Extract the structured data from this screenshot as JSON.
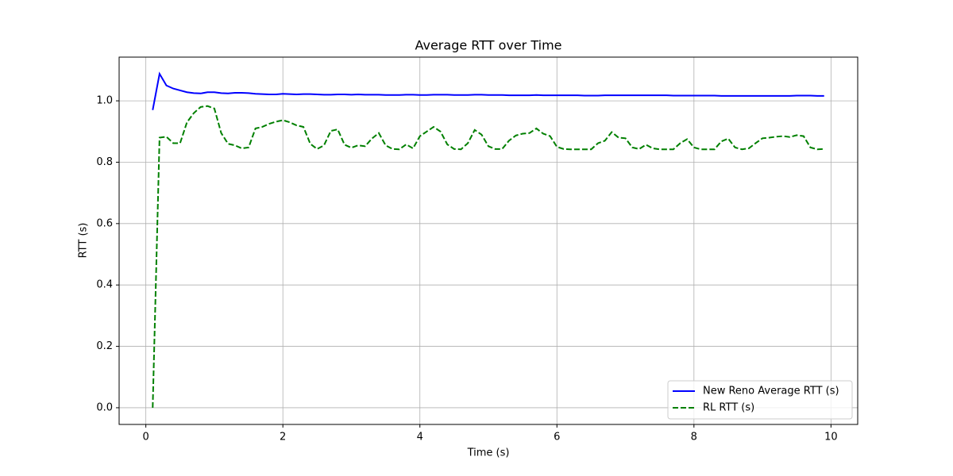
{
  "chart_data": {
    "type": "line",
    "title": "Average RTT over Time",
    "x_label": "Time (s)",
    "y_label": "RTT (s)",
    "x": [
      0.1,
      0.2,
      0.3,
      0.4,
      0.5,
      0.6,
      0.7,
      0.8,
      0.9,
      1.0,
      1.1,
      1.2,
      1.3,
      1.4,
      1.5,
      1.6,
      1.7,
      1.8,
      1.9,
      2.0,
      2.1,
      2.2,
      2.3,
      2.4,
      2.5,
      2.6,
      2.7,
      2.8,
      2.9,
      3.0,
      3.1,
      3.2,
      3.3,
      3.4,
      3.5,
      3.6,
      3.7,
      3.8,
      3.9,
      4.0,
      4.1,
      4.2,
      4.3,
      4.4,
      4.5,
      4.6,
      4.7,
      4.8,
      4.9,
      5.0,
      5.1,
      5.2,
      5.3,
      5.4,
      5.5,
      5.6,
      5.7,
      5.8,
      5.9,
      6.0,
      6.1,
      6.2,
      6.3,
      6.4,
      6.5,
      6.6,
      6.7,
      6.8,
      6.9,
      7.0,
      7.1,
      7.2,
      7.3,
      7.4,
      7.5,
      7.6,
      7.7,
      7.8,
      7.9,
      8.0,
      8.1,
      8.2,
      8.3,
      8.4,
      8.5,
      8.6,
      8.7,
      8.8,
      8.9,
      9.0,
      9.1,
      9.2,
      9.3,
      9.4,
      9.5,
      9.6,
      9.7,
      9.8,
      9.9
    ],
    "series": [
      {
        "name": "New Reno Average RTT (s)",
        "color": "#0000ff",
        "linestyle": "solid",
        "values": [
          0.97,
          1.088,
          1.05,
          1.04,
          1.034,
          1.028,
          1.025,
          1.024,
          1.028,
          1.028,
          1.025,
          1.024,
          1.026,
          1.026,
          1.025,
          1.023,
          1.022,
          1.021,
          1.021,
          1.023,
          1.022,
          1.021,
          1.022,
          1.022,
          1.021,
          1.02,
          1.02,
          1.021,
          1.021,
          1.02,
          1.021,
          1.02,
          1.02,
          1.02,
          1.019,
          1.019,
          1.019,
          1.02,
          1.02,
          1.019,
          1.019,
          1.02,
          1.02,
          1.02,
          1.019,
          1.019,
          1.019,
          1.02,
          1.02,
          1.019,
          1.019,
          1.019,
          1.018,
          1.018,
          1.018,
          1.018,
          1.019,
          1.018,
          1.018,
          1.018,
          1.018,
          1.018,
          1.018,
          1.017,
          1.017,
          1.017,
          1.018,
          1.018,
          1.018,
          1.018,
          1.018,
          1.018,
          1.018,
          1.018,
          1.018,
          1.018,
          1.017,
          1.017,
          1.017,
          1.017,
          1.017,
          1.017,
          1.017,
          1.016,
          1.016,
          1.016,
          1.016,
          1.016,
          1.016,
          1.016,
          1.016,
          1.016,
          1.016,
          1.016,
          1.017,
          1.017,
          1.017,
          1.016,
          1.016
        ]
      },
      {
        "name": "RL RTT (s)",
        "color": "#008000",
        "linestyle": "dashed",
        "values": [
          0,
          0.88,
          0.883,
          0.862,
          0.862,
          0.93,
          0.96,
          0.98,
          0.983,
          0.975,
          0.895,
          0.86,
          0.855,
          0.845,
          0.848,
          0.91,
          0.915,
          0.925,
          0.932,
          0.937,
          0.93,
          0.92,
          0.915,
          0.86,
          0.843,
          0.855,
          0.902,
          0.907,
          0.857,
          0.847,
          0.855,
          0.852,
          0.877,
          0.895,
          0.855,
          0.843,
          0.842,
          0.858,
          0.845,
          0.885,
          0.9,
          0.915,
          0.9,
          0.858,
          0.843,
          0.842,
          0.862,
          0.905,
          0.89,
          0.852,
          0.843,
          0.843,
          0.87,
          0.887,
          0.893,
          0.895,
          0.91,
          0.893,
          0.885,
          0.85,
          0.843,
          0.842,
          0.842,
          0.842,
          0.842,
          0.862,
          0.87,
          0.898,
          0.88,
          0.878,
          0.848,
          0.843,
          0.857,
          0.845,
          0.842,
          0.842,
          0.842,
          0.862,
          0.875,
          0.848,
          0.842,
          0.842,
          0.842,
          0.868,
          0.877,
          0.848,
          0.842,
          0.845,
          0.862,
          0.878,
          0.88,
          0.883,
          0.885,
          0.882,
          0.888,
          0.885,
          0.848,
          0.842,
          0.843
        ]
      }
    ],
    "xlim": [
      -0.39,
      10.39
    ],
    "ylim": [
      -0.0544,
      1.1424
    ],
    "xticks": [
      0,
      2,
      4,
      6,
      8,
      10
    ],
    "yticks": [
      {
        "value": 0,
        "label": "0.0"
      },
      0.2,
      0.4,
      0.6,
      0.8,
      {
        "value": 1,
        "label": "1.0"
      }
    ],
    "grid": true,
    "legend": "lower right"
  }
}
